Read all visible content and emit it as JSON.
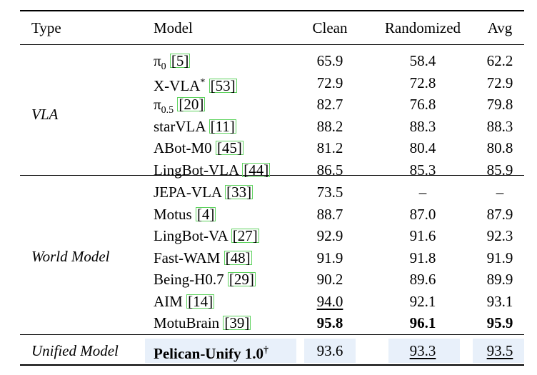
{
  "header": {
    "type": "Type",
    "model": "Model",
    "clean": "Clean",
    "randomized": "Randomized",
    "avg": "Avg"
  },
  "groups": [
    {
      "type": "VLA",
      "rows": [
        {
          "model_html": "π<sub>0</sub>",
          "ref": "5",
          "clean": "65.9",
          "randomized": "58.4",
          "avg": "62.2"
        },
        {
          "model_html": "X-VLA<sup>*</sup>",
          "ref": "53",
          "clean": "72.9",
          "randomized": "72.8",
          "avg": "72.9"
        },
        {
          "model_html": "π<sub>0.5</sub>",
          "ref": "20",
          "clean": "82.7",
          "randomized": "76.8",
          "avg": "79.8"
        },
        {
          "model_html": "starVLA",
          "ref": "11",
          "clean": "88.2",
          "randomized": "88.3",
          "avg": "88.3"
        },
        {
          "model_html": "ABot-M0",
          "ref": "45",
          "clean": "81.2",
          "randomized": "80.4",
          "avg": "80.8"
        },
        {
          "model_html": "LingBot-VLA",
          "ref": "44",
          "clean": "86.5",
          "randomized": "85.3",
          "avg": "85.9"
        }
      ]
    },
    {
      "type": "World Model",
      "rows": [
        {
          "model_html": "JEPA-VLA",
          "ref": "33",
          "clean": "73.5",
          "randomized": "–",
          "avg": "–"
        },
        {
          "model_html": "Motus",
          "ref": "4",
          "clean": "88.7",
          "randomized": "87.0",
          "avg": "87.9"
        },
        {
          "model_html": "LingBot-VA",
          "ref": "27",
          "clean": "92.9",
          "randomized": "91.6",
          "avg": "92.3"
        },
        {
          "model_html": "Fast-WAM",
          "ref": "48",
          "clean": "91.9",
          "randomized": "91.8",
          "avg": "91.9"
        },
        {
          "model_html": "Being-H0.7",
          "ref": "29",
          "clean": "90.2",
          "randomized": "89.6",
          "avg": "89.9"
        },
        {
          "model_html": "AIM",
          "ref": "14",
          "clean": "94.0",
          "randomized": "92.1",
          "avg": "93.1",
          "underline": [
            "clean"
          ]
        },
        {
          "model_html": "MotuBrain",
          "ref": "39",
          "clean": "95.8",
          "randomized": "96.1",
          "avg": "95.9",
          "bold": [
            "clean",
            "randomized",
            "avg"
          ]
        }
      ]
    },
    {
      "type": "Unified Model",
      "rows": [
        {
          "model_html": "Pelican-Unify 1.0<sup>†</sup>",
          "ref": "",
          "clean": "93.6",
          "randomized": "93.3",
          "avg": "93.5",
          "bold_model": true,
          "underline": [
            "randomized",
            "avg"
          ],
          "highlight": true
        }
      ]
    }
  ]
}
